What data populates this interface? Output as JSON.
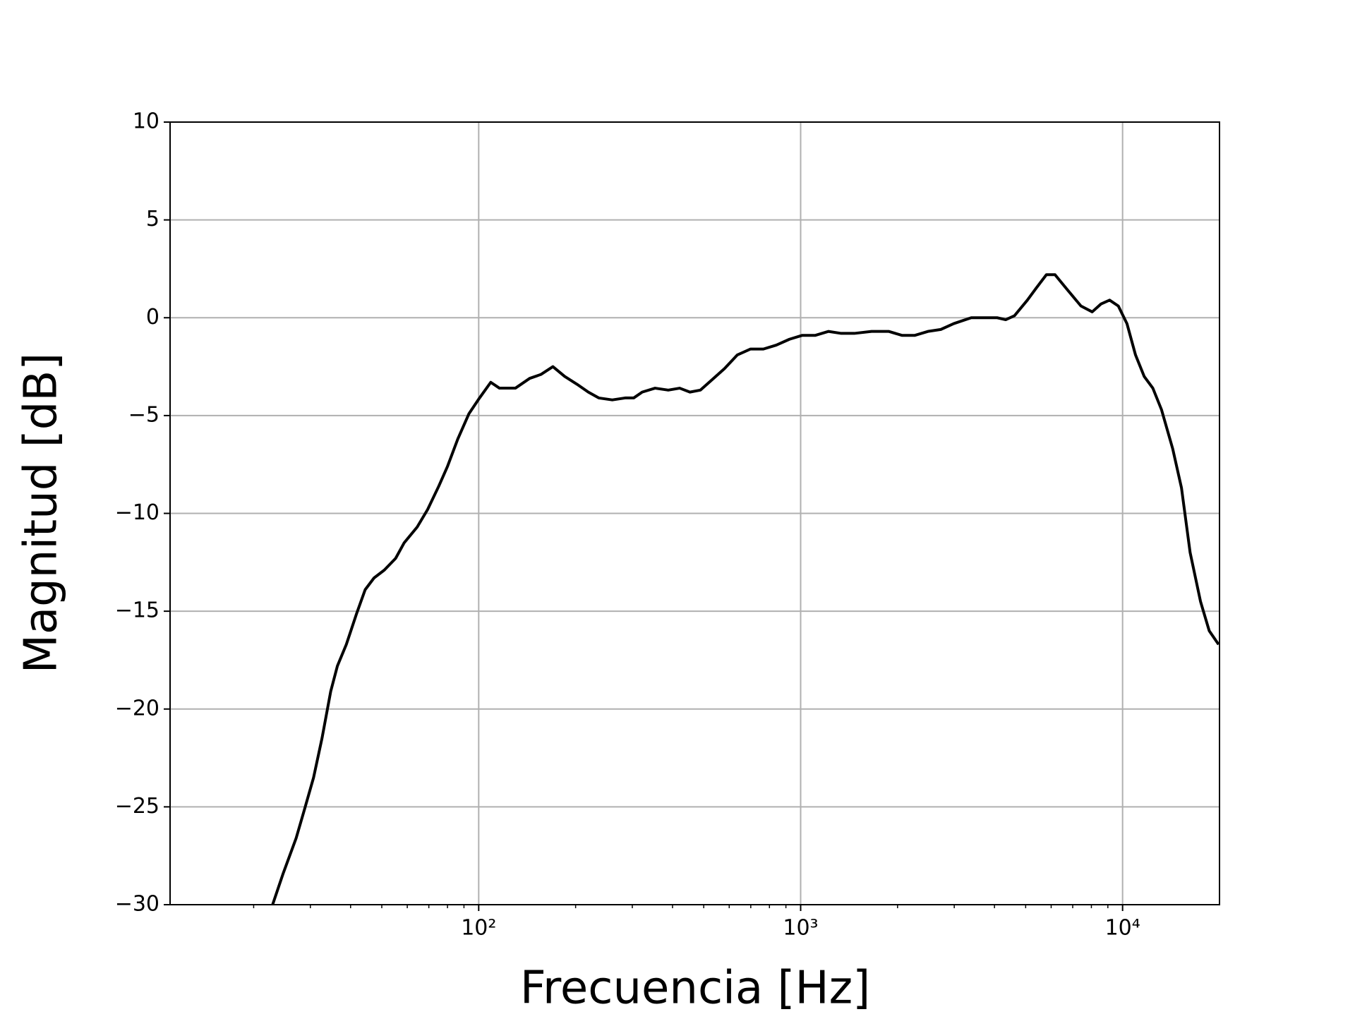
{
  "chart_data": {
    "type": "line",
    "xlabel": "Frecuencia [Hz]",
    "ylabel": "Magnitud [dB]",
    "x": [
      22.9,
      24.7,
      27.1,
      28.8,
      30.7,
      32.6,
      34.7,
      36.4,
      38.8,
      41.8,
      44.4,
      47.3,
      50.9,
      55.2,
      58.7,
      64.4,
      69.4,
      75.2,
      80,
      86.1,
      93.3,
      100.6,
      109,
      116,
      130,
      144,
      156,
      170,
      185,
      202,
      219,
      236,
      260,
      285,
      303,
      322,
      353,
      388,
      421,
      453,
      488,
      528,
      580,
      636,
      699,
      766,
      840,
      923,
      1012,
      1111,
      1219,
      1337,
      1468,
      1661,
      1880,
      2063,
      2264,
      2485,
      2725,
      2990,
      3388,
      3717,
      4077,
      4335,
      4613,
      5061,
      5383,
      5799,
      6167,
      6682,
      7425,
      8047,
      8563,
      9113,
      9700,
      10317,
      10968,
      11670,
      12416,
      13210,
      14313,
      15240,
      16210,
      17460,
      18580,
      19870
    ],
    "values": [
      -30,
      -28.4,
      -26.6,
      -25.1,
      -23.5,
      -21.5,
      -19.1,
      -17.8,
      -16.7,
      -15.1,
      -13.9,
      -13.3,
      -12.9,
      -12.3,
      -11.5,
      -10.7,
      -9.8,
      -8.6,
      -7.6,
      -6.2,
      -4.9,
      -4.1,
      -3.3,
      -3.6,
      -3.6,
      -3.1,
      -2.9,
      -2.5,
      -3.0,
      -3.4,
      -3.8,
      -4.1,
      -4.2,
      -4.1,
      -4.1,
      -3.8,
      -3.6,
      -3.7,
      -3.6,
      -3.8,
      -3.7,
      -3.2,
      -2.6,
      -1.9,
      -1.6,
      -1.6,
      -1.4,
      -1.1,
      -0.9,
      -0.9,
      -0.7,
      -0.8,
      -0.8,
      -0.7,
      -0.7,
      -0.9,
      -0.9,
      -0.7,
      -0.6,
      -0.3,
      0.0,
      0.0,
      0.0,
      -0.1,
      0.1,
      0.9,
      1.5,
      2.2,
      2.2,
      1.5,
      0.6,
      0.3,
      0.7,
      0.9,
      0.6,
      -0.3,
      -1.9,
      -3.0,
      -3.6,
      -4.7,
      -6.7,
      -8.7,
      -12.0,
      -14.5,
      -16.0,
      -16.7
    ],
    "color": "#000000",
    "xscale": "log",
    "grid": true,
    "xlim": [
      11,
      20000
    ],
    "xticks": [
      {
        "value": 100,
        "label": "10²"
      },
      {
        "value": 1000,
        "label": "10³"
      },
      {
        "value": 10000,
        "label": "10⁴"
      }
    ],
    "xminorticks": [
      20,
      30,
      40,
      50,
      60,
      70,
      80,
      90,
      200,
      300,
      400,
      500,
      600,
      700,
      800,
      900,
      2000,
      3000,
      4000,
      5000,
      6000,
      7000,
      8000,
      9000
    ],
    "ylim": [
      -30,
      10
    ],
    "yticks": [
      {
        "value": -30,
        "label": "−30"
      },
      {
        "value": -25,
        "label": "−25"
      },
      {
        "value": -20,
        "label": "−20"
      },
      {
        "value": -15,
        "label": "−15"
      },
      {
        "value": -10,
        "label": "−10"
      },
      {
        "value": -5,
        "label": "−5"
      },
      0,
      5,
      10
    ]
  }
}
